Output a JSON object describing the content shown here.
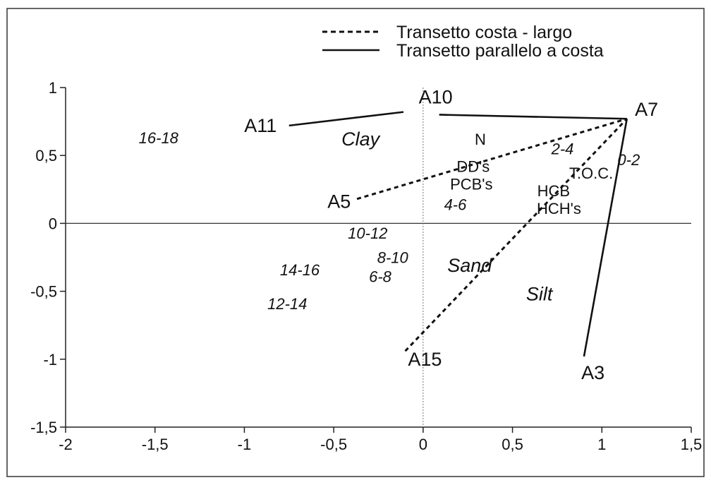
{
  "chart_data": {
    "type": "scatter",
    "xlim": [
      -2,
      1.5
    ],
    "ylim": [
      -1.5,
      1
    ],
    "x_ticks": [
      {
        "value": -2,
        "label": "-2"
      },
      {
        "value": -1.5,
        "label": "-1,5"
      },
      {
        "value": -1,
        "label": "-1"
      },
      {
        "value": -0.5,
        "label": "-0,5"
      },
      {
        "value": 0,
        "label": "0"
      },
      {
        "value": 0.5,
        "label": "0,5"
      },
      {
        "value": 1,
        "label": "1"
      },
      {
        "value": 1.5,
        "label": "1,5"
      }
    ],
    "y_ticks": [
      {
        "value": 1,
        "label": "1"
      },
      {
        "value": 0.5,
        "label": "0,5"
      },
      {
        "value": 0,
        "label": "0"
      },
      {
        "value": -0.5,
        "label": "-0,5"
      },
      {
        "value": -1,
        "label": "-1"
      },
      {
        "value": -1.5,
        "label": "-1,5"
      }
    ],
    "grid": false,
    "zero_lines": true,
    "legend": {
      "position": "top-right",
      "entries": [
        {
          "label": "Transetto costa - largo",
          "style": "dashed"
        },
        {
          "label": "Transetto parallelo a costa",
          "style": "solid"
        }
      ]
    },
    "series": [
      {
        "name": "Transetto costa - largo",
        "style": "dashed",
        "segments": [
          [
            [
              -0.37,
              0.18
            ],
            [
              1.14,
              0.77
            ]
          ],
          [
            [
              -0.1,
              -0.94
            ],
            [
              1.14,
              0.77
            ]
          ]
        ]
      },
      {
        "name": "Transetto parallelo a costa",
        "style": "solid",
        "segments": [
          [
            [
              -0.75,
              0.72
            ],
            [
              -0.11,
              0.82
            ]
          ],
          [
            [
              0.09,
              0.8
            ],
            [
              1.14,
              0.77
            ]
          ],
          [
            [
              1.14,
              0.77
            ],
            [
              0.9,
              -0.98
            ]
          ]
        ]
      }
    ],
    "stations": [
      {
        "label": "A10",
        "x": 0.07,
        "y": 0.93
      },
      {
        "label": "A7",
        "x": 1.25,
        "y": 0.84
      },
      {
        "label": "A11",
        "x": -0.91,
        "y": 0.72
      },
      {
        "label": "A5",
        "x": -0.47,
        "y": 0.16
      },
      {
        "label": "A15",
        "x": 0.01,
        "y": -1.0
      },
      {
        "label": "A3",
        "x": 0.95,
        "y": -1.1
      }
    ],
    "variables": [
      {
        "label": "N",
        "x": 0.32,
        "y": 0.62
      },
      {
        "label": "DD's",
        "x": 0.28,
        "y": 0.42
      },
      {
        "label": "PCB's",
        "x": 0.27,
        "y": 0.29
      },
      {
        "label": "T.O.C.",
        "x": 0.94,
        "y": 0.37
      },
      {
        "label": "HCB",
        "x": 0.73,
        "y": 0.24
      },
      {
        "label": "HCH's",
        "x": 0.76,
        "y": 0.11
      }
    ],
    "depths": [
      {
        "label": "16-18",
        "x": -1.48,
        "y": 0.63
      },
      {
        "label": "2-4",
        "x": 0.78,
        "y": 0.55
      },
      {
        "label": "0-2",
        "x": 1.15,
        "y": 0.47
      },
      {
        "label": "4-6",
        "x": 0.18,
        "y": 0.14
      },
      {
        "label": "10-12",
        "x": -0.31,
        "y": -0.07
      },
      {
        "label": "8-10",
        "x": -0.17,
        "y": -0.25
      },
      {
        "label": "14-16",
        "x": -0.69,
        "y": -0.34
      },
      {
        "label": "6-8",
        "x": -0.24,
        "y": -0.39
      },
      {
        "label": "12-14",
        "x": -0.76,
        "y": -0.59
      }
    ],
    "textures": [
      {
        "label": "Clay",
        "x": -0.35,
        "y": 0.62
      },
      {
        "label": "Sand",
        "x": 0.26,
        "y": -0.31
      },
      {
        "label": "Silt",
        "x": 0.65,
        "y": -0.52
      }
    ]
  }
}
